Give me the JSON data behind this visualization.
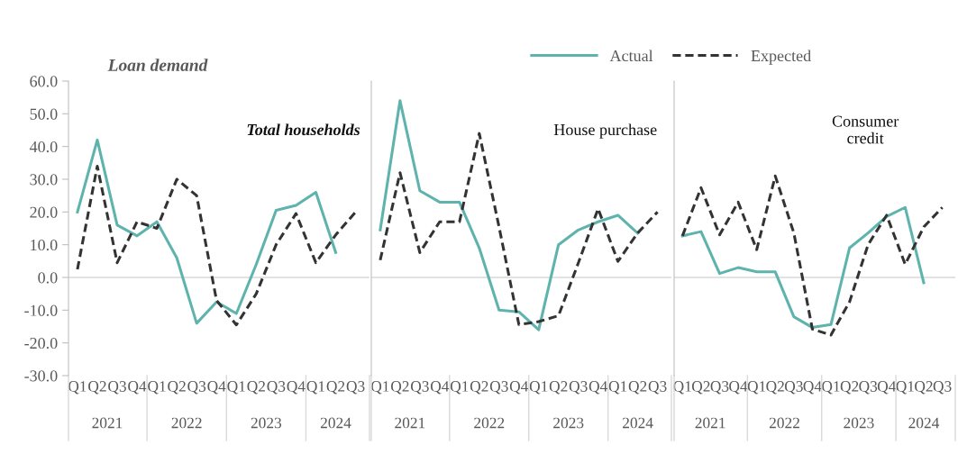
{
  "chart_data": [
    {
      "type": "line",
      "subtitle": "Loan demand",
      "title": "Total households",
      "categories": [
        "Q1",
        "Q2",
        "Q3",
        "Q4",
        "Q1",
        "Q2",
        "Q3",
        "Q4",
        "Q1",
        "Q2",
        "Q3",
        "Q4",
        "Q1",
        "Q2",
        "Q3"
      ],
      "annotations": [
        "2021",
        "2022",
        "2023",
        "2024"
      ],
      "series": [
        {
          "name": "Actual",
          "color": "#5eb4ad",
          "line_style": "solid",
          "values": [
            20,
            42,
            16,
            12.7,
            17,
            6,
            -14,
            -7.5,
            -11,
            4,
            20.5,
            22,
            26,
            7.6,
            null
          ]
        },
        {
          "name": "Expected",
          "color": "#333333",
          "line_style": "dashed",
          "values": [
            2.5,
            34,
            4.5,
            17,
            15,
            30,
            25,
            -7,
            -14.5,
            -5,
            10,
            19.5,
            4.5,
            13,
            20
          ]
        }
      ],
      "ylim": [
        -30,
        60
      ],
      "yticks": [
        {
          "value": -30,
          "label": "-30.0"
        },
        {
          "value": -20,
          "label": "-20.0"
        },
        {
          "value": -10,
          "label": "-10.0"
        },
        {
          "value": 0,
          "label": "0.0"
        },
        {
          "value": 10,
          "label": "10.0"
        },
        {
          "value": 20,
          "label": "20.0"
        },
        {
          "value": 30,
          "label": "30.0"
        },
        {
          "value": 40,
          "label": "40.0"
        },
        {
          "value": 50,
          "label": "50.0"
        },
        {
          "value": 60,
          "label": "60.0"
        }
      ],
      "ref_lines": [
        {
          "axis": "y",
          "value": 0,
          "color": "#d9d9d9"
        }
      ],
      "grid": false,
      "legend": "top"
    },
    {
      "type": "line",
      "title": "House purchase",
      "categories": [
        "Q1",
        "Q2",
        "Q3",
        "Q4",
        "Q1",
        "Q2",
        "Q3",
        "Q4",
        "Q1",
        "Q2",
        "Q3",
        "Q4",
        "Q1",
        "Q2",
        "Q3"
      ],
      "annotations": [
        "2021",
        "2022",
        "2023",
        "2024"
      ],
      "series": [
        {
          "color": "#5eb4ad",
          "line_style": "solid",
          "values": [
            14.5,
            54,
            26.5,
            23,
            23,
            9,
            -10,
            -10.5,
            -16,
            10,
            14.5,
            17,
            19,
            13.5,
            null
          ]
        },
        {
          "color": "#333333",
          "line_style": "dashed",
          "values": [
            5.3,
            32,
            7.6,
            17,
            17,
            44,
            15.4,
            -14.4,
            -13.5,
            -11.7,
            4.4,
            21,
            4.9,
            13.6,
            20
          ]
        }
      ],
      "ylim": [
        -30,
        60
      ],
      "tick_labels": "x",
      "ref_lines": [
        {
          "axis": "y",
          "value": 0,
          "color": "#d9d9d9"
        }
      ],
      "grid": false,
      "legend": false
    },
    {
      "type": "line",
      "title": "Consumer\ncredit",
      "categories": [
        "Q1",
        "Q2",
        "Q3",
        "Q4",
        "Q1",
        "Q2",
        "Q3",
        "Q4",
        "Q1",
        "Q2",
        "Q3",
        "Q4",
        "Q1",
        "Q2",
        "Q3"
      ],
      "annotations": [
        "2021",
        "2022",
        "2023",
        "2024"
      ],
      "series": [
        {
          "color": "#5eb4ad",
          "line_style": "solid",
          "values": [
            12.7,
            14,
            1.2,
            3,
            1.7,
            1.7,
            -12,
            -15.3,
            -14.4,
            9,
            13.6,
            18.6,
            21.4,
            -1.6,
            null
          ]
        },
        {
          "color": "#333333",
          "line_style": "dashed",
          "values": [
            12.7,
            27.4,
            13,
            23,
            8.5,
            31,
            13.6,
            -15.8,
            -17.6,
            -7.5,
            10,
            19,
            4,
            15.4,
            21.4
          ]
        }
      ],
      "ylim": [
        -30,
        60
      ],
      "tick_labels": "x",
      "ref_lines": [
        {
          "axis": "y",
          "value": 0,
          "color": "#d9d9d9"
        }
      ],
      "grid": false,
      "legend": false
    }
  ]
}
